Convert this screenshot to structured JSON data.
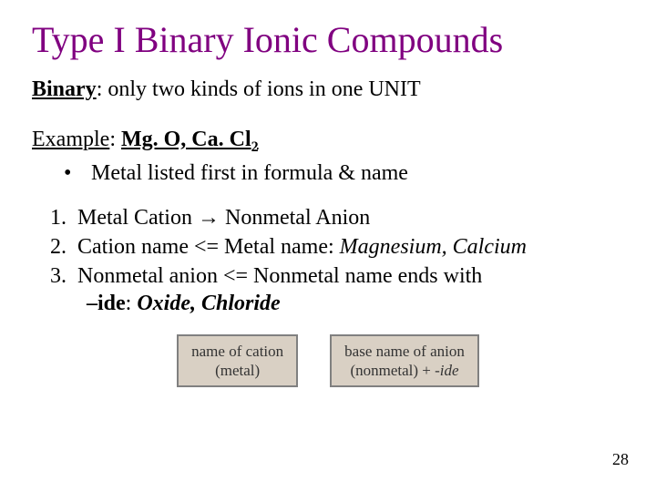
{
  "title": "Type I Binary Ionic Compounds",
  "definition": {
    "term": "Binary",
    "text": ": only two kinds of ions in one UNIT"
  },
  "example": {
    "label": "Example",
    "compounds": "Mg. O, Ca. Cl",
    "subscript": "2"
  },
  "bullet": {
    "mark": "•",
    "text": "Metal listed first in formula & name"
  },
  "list": {
    "item1_num": "1.",
    "item1_text_a": "Metal Cation ",
    "item1_arrow": "→",
    "item1_text_b": " Nonmetal Anion",
    "item2_num": "2.",
    "item2_text": "Cation name <= Metal name: ",
    "item2_italic": "Magnesium, Calcium",
    "item3_num": "3.",
    "item3_text": "Nonmetal anion <=  Nonmetal name ends with ",
    "item3_bold": "–ide",
    "item3_sep": ": ",
    "item3_italic": "Oxide, Chloride"
  },
  "box1": {
    "line1": "name of cation",
    "line2": "(metal)"
  },
  "box2": {
    "line1": "base name of anion",
    "line2_a": "(nonmetal) + ",
    "line2_b": "-ide"
  },
  "page_number": "28",
  "colors": {
    "title": "#800080",
    "text": "#000000",
    "box_bg": "#d9d0c4",
    "box_border": "#808080"
  }
}
